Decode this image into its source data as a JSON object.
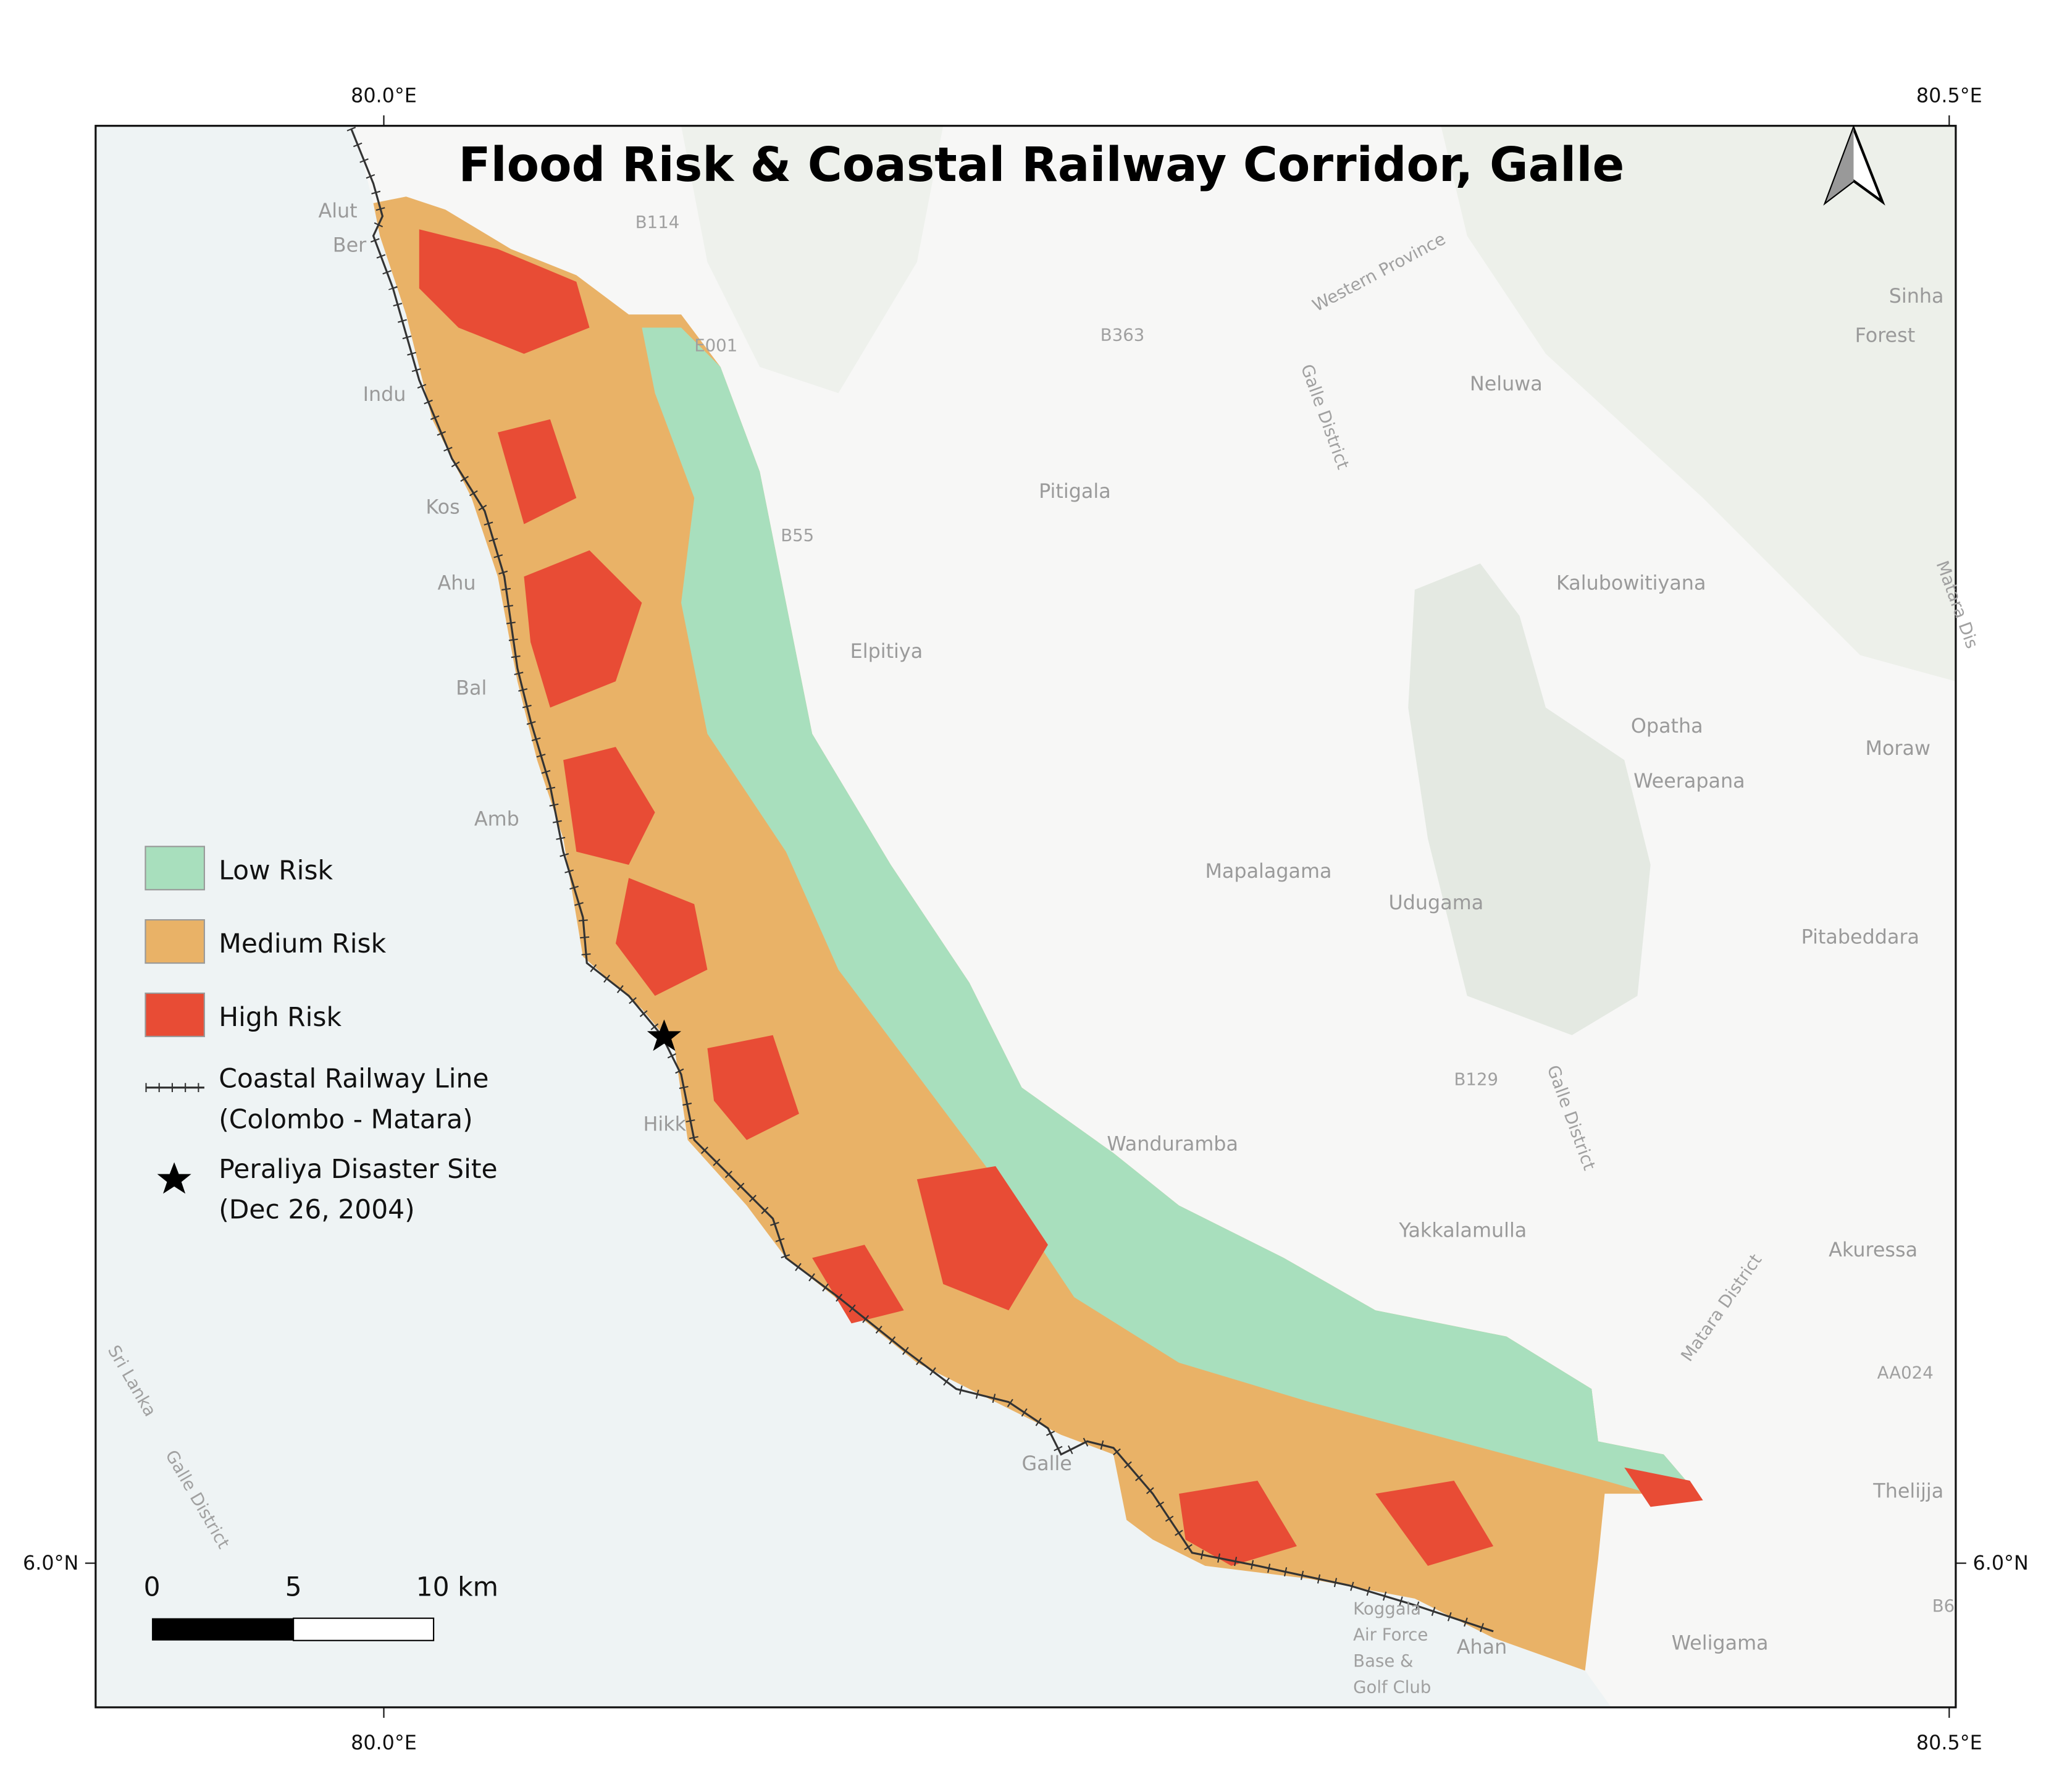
{
  "title": "Flood Risk & Coastal Railway Corridor, Galle",
  "graticule": {
    "top": [
      "80.0°E",
      "80.5°E"
    ],
    "bottom": [
      "80.0°E",
      "80.5°E"
    ],
    "left": "6.0°N",
    "right": "6.0°N"
  },
  "legend": {
    "low": "Low Risk",
    "medium": "Medium Risk",
    "high": "High Risk",
    "railway": [
      "Coastal Railway Line",
      "(Colombo - Matara)"
    ],
    "site": [
      "Peraliya Disaster Site",
      "(Dec 26, 2004)"
    ]
  },
  "scale_bar": [
    "0",
    "5",
    "10 km"
  ],
  "places": [
    "Alut",
    "Ber",
    "Indu",
    "Kos",
    "Ahu",
    "Bal",
    "Amb",
    "Hikk",
    "Galle",
    "Ahan",
    "Neluwa",
    "Pitigala",
    "Elpitiya",
    "Kalubowitiyana",
    "Opatha",
    "Weerapana",
    "Moraw",
    "Mapalagama",
    "Udugama",
    "Pitabeddara",
    "Wanduramba",
    "Yakkalamulla",
    "Akuressa",
    "Thelijja",
    "Weligama",
    "Sinha",
    "Forest"
  ],
  "roads": [
    "B114",
    "E001",
    "B363",
    "B55",
    "B129",
    "AA024",
    "B6"
  ],
  "regions": [
    "Western Province",
    "Galle District",
    "Galle District",
    "Matara District",
    "Sri Lanka",
    "Galle District",
    "Matara Dis"
  ],
  "landmark": [
    "Koggala",
    "Air Force",
    "Base &",
    "Golf Club"
  ]
}
